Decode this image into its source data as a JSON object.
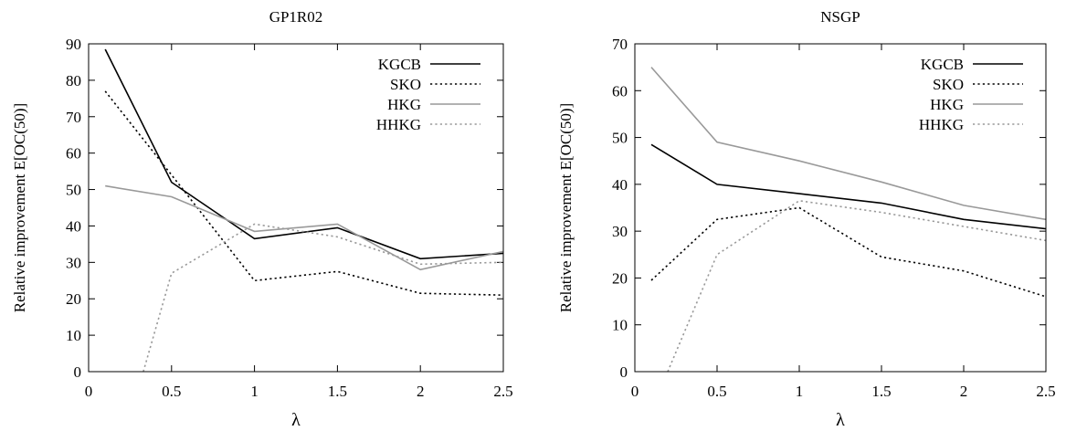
{
  "chart_data": [
    {
      "type": "line",
      "title": "GP1R02",
      "xlabel": "λ",
      "ylabel": "Relative improvement E[OC(50)]",
      "xlim": [
        0,
        2.5
      ],
      "ylim": [
        0,
        90
      ],
      "xticks": [
        "0",
        "0.5",
        "1",
        "1.5",
        "2",
        "2.5"
      ],
      "yticks": [
        "0",
        "10",
        "20",
        "30",
        "40",
        "50",
        "60",
        "70",
        "80",
        "90"
      ],
      "legend_position": "top-right",
      "grid": false,
      "series": [
        {
          "name": "KGCB",
          "color": "#000000",
          "dash": "solid",
          "x": [
            0.1,
            0.5,
            1,
            1.5,
            2,
            2.5
          ],
          "values": [
            88.5,
            52,
            36.5,
            39.5,
            31,
            32.5
          ]
        },
        {
          "name": "SKO",
          "color": "#000000",
          "dash": "dotted",
          "x": [
            0.1,
            0.5,
            1,
            1.5,
            2,
            2.5
          ],
          "values": [
            77,
            54,
            25,
            27.5,
            21.5,
            21
          ]
        },
        {
          "name": "HKG",
          "color": "#999999",
          "dash": "solid",
          "x": [
            0.1,
            0.5,
            1,
            1.5,
            2,
            2.5
          ],
          "values": [
            51,
            48,
            38.5,
            40.5,
            28,
            33
          ]
        },
        {
          "name": "HHKG",
          "color": "#999999",
          "dash": "dotted",
          "x": [
            0.33,
            0.5,
            1,
            1.5,
            2,
            2.5
          ],
          "values": [
            0,
            27,
            40.5,
            37,
            29.5,
            30
          ]
        }
      ]
    },
    {
      "type": "line",
      "title": "NSGP",
      "xlabel": "λ",
      "ylabel": "Relative improvement E[OC(50)]",
      "xlim": [
        0,
        2.5
      ],
      "ylim": [
        0,
        70
      ],
      "xticks": [
        "0",
        "0.5",
        "1",
        "1.5",
        "2",
        "2.5"
      ],
      "yticks": [
        "0",
        "10",
        "20",
        "30",
        "40",
        "50",
        "60",
        "70"
      ],
      "legend_position": "top-right",
      "grid": false,
      "series": [
        {
          "name": "KGCB",
          "color": "#000000",
          "dash": "solid",
          "x": [
            0.1,
            0.5,
            1,
            1.5,
            2,
            2.5
          ],
          "values": [
            48.5,
            40,
            38,
            36,
            32.5,
            30.5
          ]
        },
        {
          "name": "SKO",
          "color": "#000000",
          "dash": "dotted",
          "x": [
            0.1,
            0.5,
            1,
            1.5,
            2,
            2.5
          ],
          "values": [
            19.5,
            32.5,
            35,
            24.5,
            21.5,
            16
          ]
        },
        {
          "name": "HKG",
          "color": "#999999",
          "dash": "solid",
          "x": [
            0.1,
            0.5,
            1,
            1.5,
            2,
            2.5
          ],
          "values": [
            65,
            49,
            45,
            40.5,
            35.5,
            32.5
          ]
        },
        {
          "name": "HHKG",
          "color": "#999999",
          "dash": "dotted",
          "x": [
            0.2,
            0.5,
            1,
            1.5,
            2,
            2.5
          ],
          "values": [
            0,
            25,
            36.5,
            34,
            31,
            28
          ]
        }
      ]
    }
  ]
}
